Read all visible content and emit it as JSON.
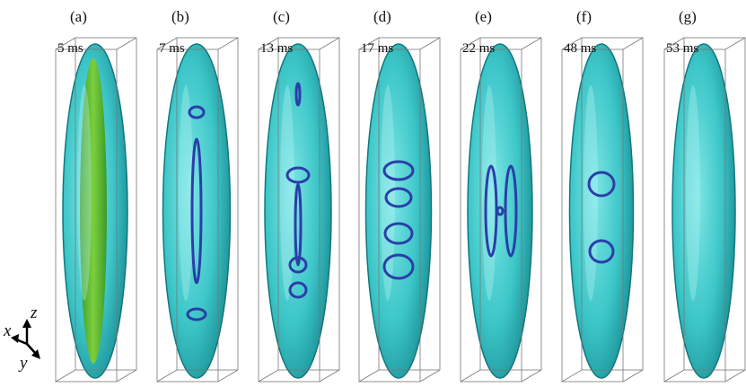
{
  "panels": [
    {
      "label": "(a)",
      "time": "5 ms"
    },
    {
      "label": "(b)",
      "time": "7 ms"
    },
    {
      "label": "(c)",
      "time": "13 ms"
    },
    {
      "label": "(d)",
      "time": "17 ms"
    },
    {
      "label": "(e)",
      "time": "22 ms"
    },
    {
      "label": "(f)",
      "time": "48 ms"
    },
    {
      "label": "(g)",
      "time": "53 ms"
    }
  ],
  "axes": {
    "x": "x",
    "y": "y",
    "z": "z"
  }
}
